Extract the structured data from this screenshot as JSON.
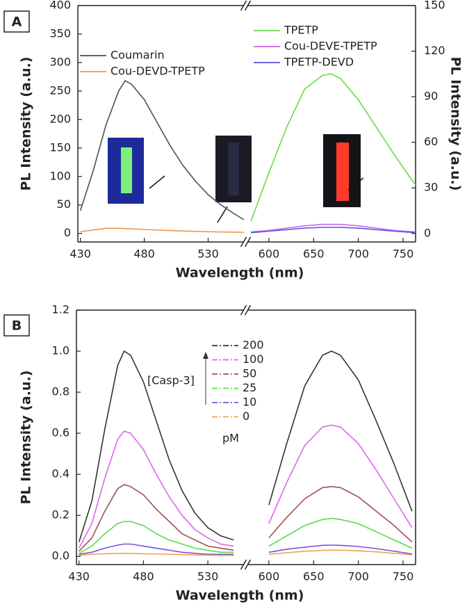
{
  "chart_data": [
    {
      "type": "line",
      "panel": "A",
      "xlabel": "Wavelength (nm)",
      "ylabel": "PL Intensity (a.u.)",
      "y2label": "PL Intensity (a.u.)",
      "xlim": [
        [
          428,
          558
        ],
        [
          576,
          764
        ]
      ],
      "xticks": [
        430,
        480,
        530,
        600,
        650,
        700,
        750
      ],
      "ylim": [
        -15,
        400
      ],
      "yticks": [
        0,
        50,
        100,
        150,
        200,
        250,
        300,
        350,
        400
      ],
      "y2lim": [
        -5.6,
        150
      ],
      "y2ticks": [
        0,
        30,
        60,
        90,
        120,
        150
      ],
      "series": [
        {
          "name": "Coumarin",
          "color": "#505050",
          "axis": "y",
          "x": [
            430,
            440,
            450,
            460,
            465,
            470,
            480,
            490,
            500,
            510,
            520,
            530,
            540,
            550,
            558
          ],
          "values": [
            40,
            110,
            190,
            250,
            268,
            262,
            235,
            195,
            155,
            120,
            92,
            68,
            50,
            35,
            24
          ]
        },
        {
          "name": "Cou-DEVD-TPETP",
          "color": "#f0954a",
          "axis": "y",
          "x": [
            430,
            450,
            460,
            480,
            500,
            530,
            558
          ],
          "values": [
            3,
            9,
            9,
            7,
            5,
            3,
            2
          ]
        },
        {
          "name": "TPETP",
          "color": "#66dd44",
          "axis": "y2",
          "x": [
            580,
            600,
            620,
            640,
            660,
            670,
            680,
            700,
            720,
            740,
            760,
            764
          ],
          "values": [
            8,
            40,
            70,
            95,
            104,
            105,
            102,
            88,
            70,
            52,
            35,
            32
          ]
        },
        {
          "name": "Cou-DEVE-TPETP",
          "color": "#cc66ee",
          "axis": "y2",
          "x": [
            580,
            600,
            620,
            640,
            660,
            670,
            680,
            700,
            720,
            740,
            764
          ],
          "values": [
            1,
            2,
            3.5,
            5,
            6,
            6,
            6,
            5,
            3.5,
            2,
            1
          ]
        },
        {
          "name": "TPETP-DEVD",
          "color": "#5555dd",
          "axis": "y2",
          "x": [
            580,
            600,
            620,
            640,
            660,
            670,
            680,
            700,
            720,
            740,
            764
          ],
          "values": [
            0.5,
            1.5,
            2.5,
            3.5,
            4,
            4,
            4,
            3.5,
            2.5,
            1.5,
            0.5
          ]
        }
      ]
    },
    {
      "type": "line",
      "panel": "B",
      "xlabel": "Wavelength (nm)",
      "ylabel": "PL Intensity (a.u.)",
      "legend_title": "[Casp-3]",
      "legend_unit": "pM",
      "xlim": [
        [
          428,
          558
        ],
        [
          576,
          764
        ]
      ],
      "xticks": [
        430,
        480,
        530,
        600,
        650,
        700,
        750
      ],
      "ylim": [
        -0.04,
        1.2
      ],
      "yticks": [
        {
          "value": 0,
          "label": "0.0"
        },
        0.2,
        0.4,
        0.6,
        0.8,
        {
          "value": 1,
          "label": "1.0"
        },
        1.2
      ],
      "x": [
        430,
        440,
        450,
        460,
        465,
        470,
        480,
        490,
        500,
        510,
        520,
        530,
        540,
        550,
        600,
        620,
        640,
        660,
        670,
        680,
        700,
        720,
        740,
        760
      ],
      "series": [
        {
          "name": "200",
          "color": "#333333",
          "values": [
            0.07,
            0.27,
            0.62,
            0.93,
            1.0,
            0.98,
            0.85,
            0.66,
            0.47,
            0.32,
            0.21,
            0.14,
            0.1,
            0.08,
            0.25,
            0.55,
            0.83,
            0.98,
            1.0,
            0.98,
            0.86,
            0.66,
            0.45,
            0.22
          ]
        },
        {
          "name": "100",
          "color": "#dd66ee",
          "values": [
            0.04,
            0.16,
            0.38,
            0.57,
            0.61,
            0.6,
            0.52,
            0.4,
            0.29,
            0.2,
            0.13,
            0.09,
            0.06,
            0.05,
            0.16,
            0.36,
            0.54,
            0.63,
            0.64,
            0.63,
            0.55,
            0.42,
            0.28,
            0.14
          ]
        },
        {
          "name": "50",
          "color": "#a0505a",
          "values": [
            0.025,
            0.09,
            0.22,
            0.33,
            0.35,
            0.34,
            0.3,
            0.23,
            0.17,
            0.11,
            0.08,
            0.05,
            0.04,
            0.03,
            0.09,
            0.19,
            0.28,
            0.335,
            0.34,
            0.335,
            0.29,
            0.22,
            0.15,
            0.07
          ]
        },
        {
          "name": "25",
          "color": "#55dd44",
          "values": [
            0.015,
            0.05,
            0.11,
            0.16,
            0.17,
            0.17,
            0.15,
            0.11,
            0.08,
            0.06,
            0.04,
            0.03,
            0.02,
            0.02,
            0.05,
            0.1,
            0.15,
            0.18,
            0.185,
            0.18,
            0.16,
            0.12,
            0.08,
            0.04
          ]
        },
        {
          "name": "10",
          "color": "#7755dd",
          "values": [
            0.01,
            0.02,
            0.04,
            0.055,
            0.06,
            0.06,
            0.05,
            0.04,
            0.03,
            0.02,
            0.015,
            0.01,
            0.01,
            0.01,
            0.02,
            0.035,
            0.045,
            0.054,
            0.055,
            0.054,
            0.048,
            0.038,
            0.025,
            0.012
          ]
        },
        {
          "name": "0",
          "color": "#f0a050",
          "values": [
            0.005,
            0.01,
            0.013,
            0.015,
            0.015,
            0.015,
            0.013,
            0.012,
            0.01,
            0.008,
            0.007,
            0.006,
            0.005,
            0.005,
            0.01,
            0.018,
            0.025,
            0.029,
            0.03,
            0.03,
            0.027,
            0.022,
            0.015,
            0.007
          ]
        }
      ]
    }
  ]
}
